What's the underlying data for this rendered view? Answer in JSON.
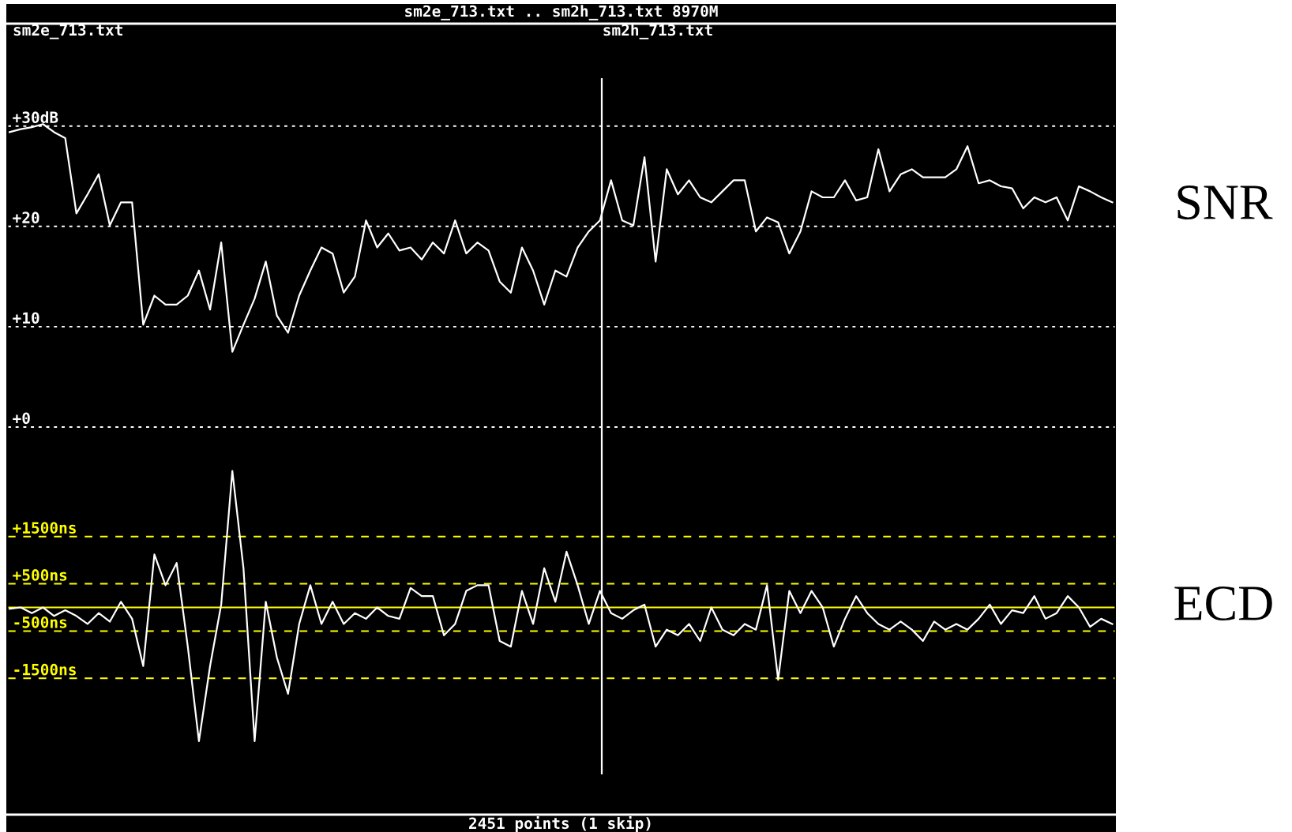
{
  "chart_data": [
    {
      "type": "line",
      "title": "sm2e_713.txt .. sm2h_713.txt 8970M",
      "ylabel": "SNR",
      "categories": [
        null,
        null,
        null,
        null,
        null,
        null,
        null,
        null,
        null,
        null,
        null,
        null,
        null,
        null,
        null,
        null,
        null,
        null,
        null,
        null,
        null,
        null,
        null,
        null,
        null,
        null,
        null,
        null,
        null,
        null,
        null,
        null,
        null,
        null,
        null,
        null,
        null,
        null,
        null,
        null,
        null,
        null,
        null,
        null,
        null,
        null,
        null,
        null,
        null,
        null,
        null,
        null,
        null,
        null,
        null,
        null,
        null,
        null,
        null,
        null,
        null,
        null,
        null,
        null,
        null,
        null,
        null,
        null,
        null,
        null,
        null,
        null,
        null,
        null,
        null,
        null,
        null,
        null,
        null,
        null,
        null,
        null,
        null,
        null,
        null,
        null,
        null,
        null,
        null,
        null,
        null,
        null,
        null,
        null,
        null,
        null,
        null,
        null,
        null,
        null
      ],
      "series": [
        {
          "color": "#ffffff",
          "values": [
            29.4,
            29.7,
            29.9,
            30.2,
            29.4,
            28.8,
            21.3,
            23.2,
            25.2,
            20.1,
            22.4,
            22.4,
            10.2,
            13.1,
            12.2,
            12.2,
            13.1,
            15.6,
            11.7,
            18.4,
            7.5,
            10.2,
            12.8,
            16.5,
            11.1,
            9.4,
            13.1,
            15.6,
            17.9,
            17.3,
            13.4,
            15.0,
            20.6,
            17.9,
            19.3,
            17.6,
            17.9,
            16.7,
            18.4,
            17.3,
            20.6,
            17.3,
            18.4,
            17.6,
            14.5,
            13.4,
            17.9,
            15.6,
            12.2,
            15.6,
            15.0,
            17.9,
            19.5,
            20.6,
            24.6,
            20.6,
            20.1,
            26.9,
            16.5,
            25.7,
            23.2,
            24.6,
            22.9,
            22.4,
            23.5,
            24.6,
            24.6,
            19.5,
            20.9,
            20.4,
            17.3,
            19.5,
            23.5,
            22.9,
            22.9,
            24.6,
            22.6,
            22.9,
            27.7,
            23.5,
            25.2,
            25.7,
            24.9,
            24.9,
            24.9,
            25.7,
            28.0,
            24.3,
            24.6,
            24.0,
            23.8,
            21.8,
            22.9,
            22.4,
            22.9,
            20.6,
            24.0,
            23.5,
            22.9,
            22.4
          ]
        }
      ],
      "ylim": [
        -1.5,
        35.1
      ],
      "yticks": [
        {
          "value": 0,
          "label": "+0"
        },
        {
          "value": 10,
          "label": "+10"
        },
        {
          "value": 20,
          "label": "+20"
        },
        {
          "value": 30,
          "label": "+30dB"
        }
      ],
      "grid": "y",
      "tick_labels": "y",
      "line_style": "solid",
      "annotations": [
        "sm2e_713.txt",
        "sm2h_713.txt"
      ]
    },
    {
      "type": "line",
      "ylabel": "ECD",
      "categories": [
        null,
        null,
        null,
        null,
        null,
        null,
        null,
        null,
        null,
        null,
        null,
        null,
        null,
        null,
        null,
        null,
        null,
        null,
        null,
        null,
        null,
        null,
        null,
        null,
        null,
        null,
        null,
        null,
        null,
        null,
        null,
        null,
        null,
        null,
        null,
        null,
        null,
        null,
        null,
        null,
        null,
        null,
        null,
        null,
        null,
        null,
        null,
        null,
        null,
        null,
        null,
        null,
        null,
        null,
        null,
        null,
        null,
        null,
        null,
        null,
        null,
        null,
        null,
        null,
        null,
        null,
        null,
        null,
        null,
        null,
        null,
        null,
        null,
        null,
        null,
        null,
        null,
        null,
        null,
        null,
        null,
        null,
        null,
        null,
        null,
        null,
        null,
        null,
        null,
        null,
        null,
        null,
        null,
        null,
        null,
        null,
        null,
        null,
        null,
        null
      ],
      "series": [
        {
          "color": "#ffffff",
          "values": [
            -30,
            0,
            -120,
            0,
            -180,
            -60,
            -180,
            -350,
            -120,
            -300,
            120,
            -240,
            -1240,
            1120,
            470,
            940,
            -830,
            -2830,
            -1240,
            60,
            2890,
            830,
            -2830,
            120,
            -1060,
            -1830,
            -350,
            470,
            -350,
            120,
            -350,
            -120,
            -240,
            0,
            -180,
            -240,
            410,
            240,
            240,
            -590,
            -350,
            350,
            470,
            470,
            -710,
            -830,
            350,
            -350,
            830,
            120,
            1180,
            470,
            -350,
            350,
            -120,
            -240,
            -60,
            60,
            -830,
            -470,
            -590,
            -350,
            -710,
            0,
            -470,
            -590,
            -350,
            -470,
            470,
            -1530,
            350,
            -120,
            350,
            0,
            -830,
            -240,
            240,
            -120,
            -350,
            -470,
            -300,
            -470,
            -710,
            -300,
            -470,
            -350,
            -470,
            -240,
            60,
            -350,
            -60,
            -120,
            240,
            -240,
            -120,
            240,
            0,
            -410,
            -240,
            -350
          ]
        }
      ],
      "ylim": [
        -3600,
        3500
      ],
      "yticks": [
        {
          "value": 1500,
          "label": "+1500ns"
        },
        {
          "value": 500,
          "label": "+500ns"
        },
        {
          "value": -500,
          "label": "-500ns"
        },
        {
          "value": -1500,
          "label": "-1500ns"
        }
      ],
      "grid": "y",
      "tick_labels": "y",
      "line_style": "solid",
      "annotations": [
        "2451 points (1 skip)"
      ],
      "ref_lines": [
        {
          "axis": "y",
          "value": 0,
          "color": "#ffff00"
        }
      ]
    }
  ]
}
